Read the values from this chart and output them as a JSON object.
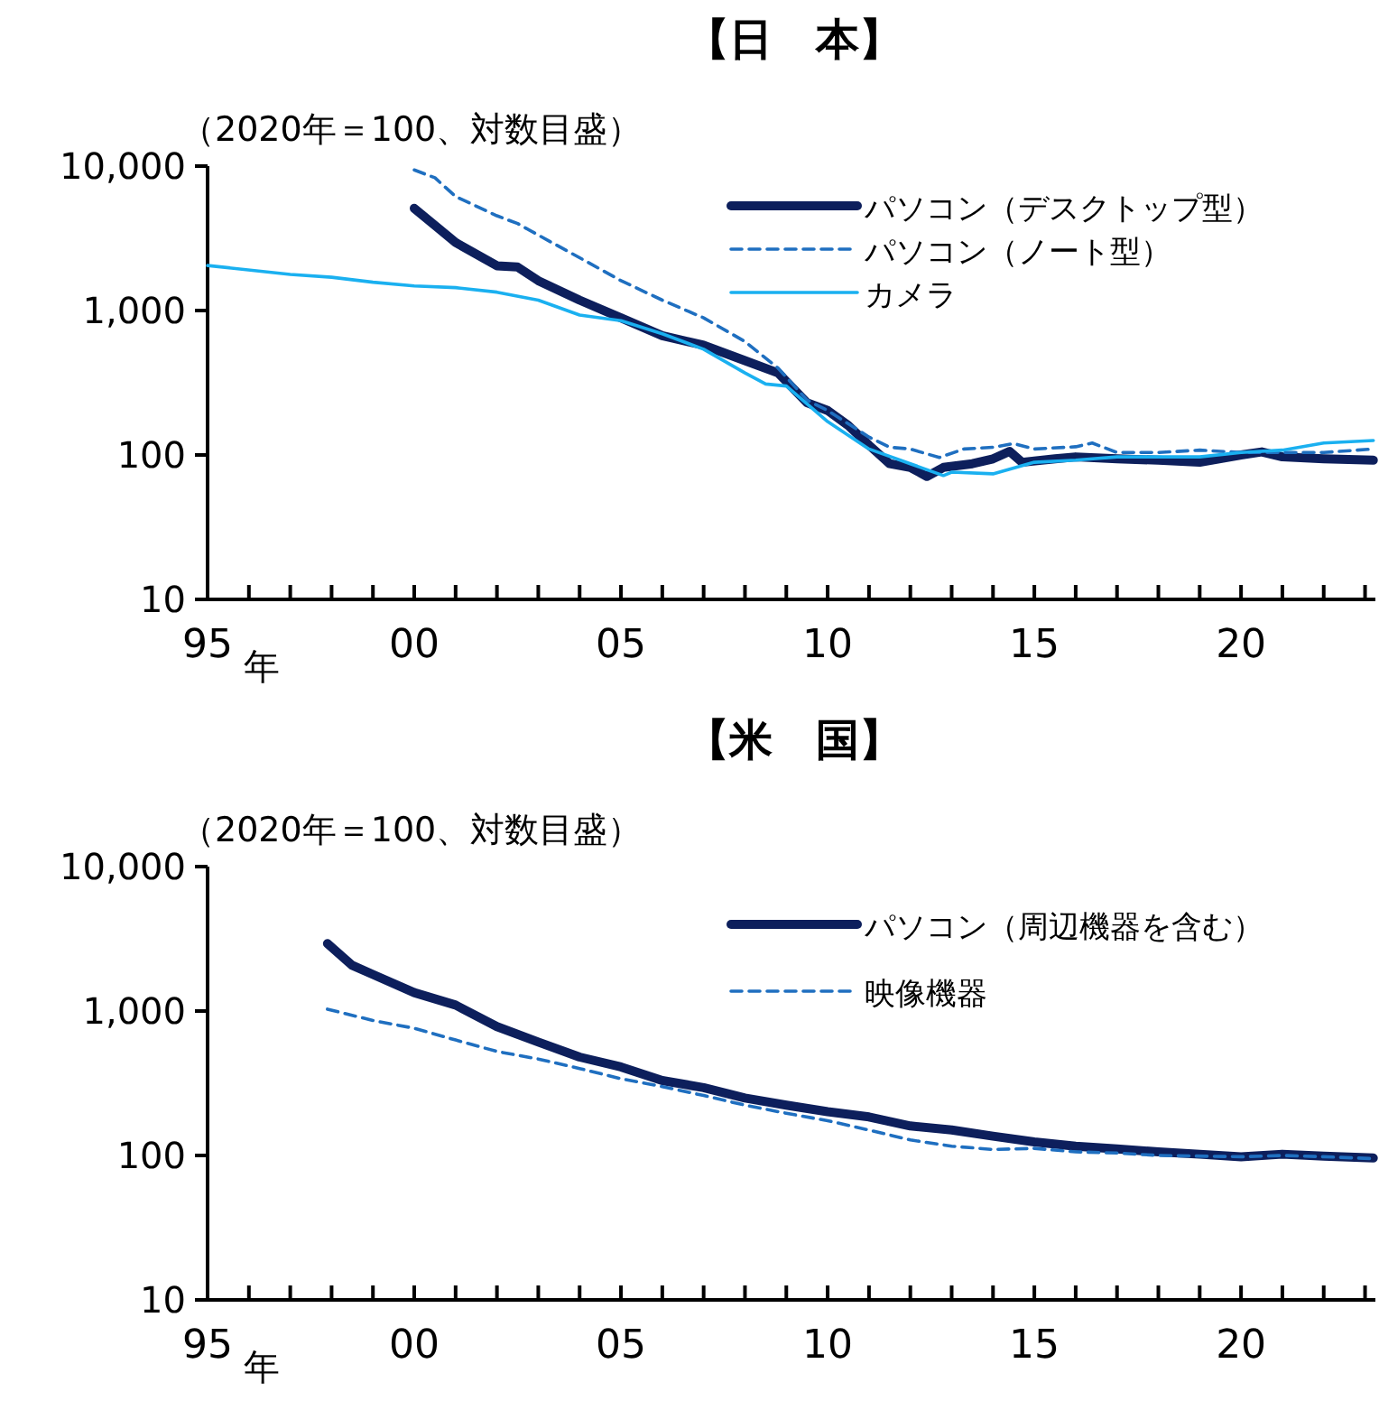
{
  "chart_data": [
    {
      "type": "line",
      "title": "【日　本】",
      "subtitle": "（2020年＝100、対数目盛）",
      "xlabel": "年",
      "log": true,
      "legend": "top right",
      "grid": false,
      "xlim": [
        1995,
        2023.25
      ],
      "ylim": [
        10,
        10000
      ],
      "yticks": [
        {
          "value": 10,
          "label": "10"
        },
        {
          "value": 100,
          "label": "100"
        },
        {
          "value": 1000,
          "label": "1,000"
        },
        {
          "value": 10000,
          "label": "10,000"
        }
      ],
      "xticks": [
        {
          "value": 1995,
          "label": "95"
        },
        {
          "value": 1996,
          "label": null
        },
        {
          "value": 1997,
          "label": null
        },
        {
          "value": 1998,
          "label": null
        },
        {
          "value": 1999,
          "label": null
        },
        {
          "value": 2000,
          "label": "00"
        },
        {
          "value": 2001,
          "label": null
        },
        {
          "value": 2002,
          "label": null
        },
        {
          "value": 2003,
          "label": null
        },
        {
          "value": 2004,
          "label": null
        },
        {
          "value": 2005,
          "label": "05"
        },
        {
          "value": 2006,
          "label": null
        },
        {
          "value": 2007,
          "label": null
        },
        {
          "value": 2008,
          "label": null
        },
        {
          "value": 2009,
          "label": null
        },
        {
          "value": 2010,
          "label": "10"
        },
        {
          "value": 2011,
          "label": null
        },
        {
          "value": 2012,
          "label": null
        },
        {
          "value": 2013,
          "label": null
        },
        {
          "value": 2014,
          "label": null
        },
        {
          "value": 2015,
          "label": "15"
        },
        {
          "value": 2016,
          "label": null
        },
        {
          "value": 2017,
          "label": null
        },
        {
          "value": 2018,
          "label": null
        },
        {
          "value": 2019,
          "label": null
        },
        {
          "value": 2020,
          "label": "20"
        },
        {
          "value": 2021,
          "label": null
        },
        {
          "value": 2022,
          "label": null
        },
        {
          "value": 2023,
          "label": null
        }
      ],
      "series": [
        {
          "name": "パソコン（デスクトップ型）",
          "color": "#0d1f5c",
          "line_style": "solid",
          "x": [
            2000,
            2001,
            2002,
            2002.5,
            2003,
            2004,
            2005,
            2006,
            2007,
            2008,
            2008.8,
            2009.5,
            2010,
            2010.5,
            2011,
            2011.5,
            2012,
            2012.4,
            2012.8,
            2013.5,
            2014,
            2014.4,
            2014.7,
            2015.5,
            2016,
            2017,
            2018,
            2019,
            2020,
            2020.5,
            2021,
            2022,
            2023.2
          ],
          "values": [
            5100,
            2960,
            2040,
            2000,
            1610,
            1180,
            890,
            670,
            575,
            450,
            370,
            230,
            203,
            160,
            117,
            87,
            82,
            71,
            82,
            87,
            94,
            106,
            89,
            94,
            97,
            94,
            92,
            89,
            100,
            105,
            97,
            94,
            92
          ]
        },
        {
          "name": "パソコン（ノート型）",
          "color": "#1f6fc0",
          "line_style": "dashed",
          "x": [
            2000,
            2000.5,
            2001,
            2002,
            2002.5,
            2003,
            2004,
            2005,
            2006,
            2007,
            2008,
            2008.8,
            2009.5,
            2010,
            2011,
            2011.5,
            2012,
            2012.7,
            2013.3,
            2014,
            2014.5,
            2015,
            2016,
            2016.4,
            2017,
            2018,
            2019,
            2020,
            2021,
            2022,
            2023.2
          ],
          "values": [
            9400,
            8300,
            6150,
            4530,
            4000,
            3330,
            2320,
            1610,
            1180,
            890,
            610,
            400,
            240,
            203,
            133,
            113,
            110,
            96,
            110,
            113,
            120,
            110,
            114,
            121,
            104,
            104,
            108,
            104,
            104,
            104,
            110
          ]
        },
        {
          "name": "カメラ",
          "color": "#1ab0f0",
          "line_style": "solid",
          "x": [
            1995,
            1997,
            1998,
            1999,
            2000,
            2001,
            2002,
            2003,
            2004,
            2005,
            2006,
            2007,
            2008,
            2008.5,
            2009,
            2010,
            2011,
            2012,
            2012.8,
            2013,
            2014,
            2015,
            2016,
            2017,
            2018,
            2019,
            2020,
            2021,
            2022,
            2023.2
          ],
          "values": [
            2050,
            1780,
            1700,
            1570,
            1480,
            1440,
            1340,
            1180,
            930,
            850,
            690,
            540,
            370,
            310,
            300,
            170,
            110,
            87,
            72,
            76,
            74,
            89,
            92,
            97,
            97,
            97,
            104,
            108,
            121,
            126
          ]
        }
      ]
    },
    {
      "type": "line",
      "title": "【米　国】",
      "subtitle": "（2020年＝100、対数目盛）",
      "xlabel": "年",
      "log": true,
      "legend": "top right",
      "grid": false,
      "xlim": [
        1995,
        2023.25
      ],
      "ylim": [
        10,
        10000
      ],
      "yticks": [
        {
          "value": 10,
          "label": "10"
        },
        {
          "value": 100,
          "label": "100"
        },
        {
          "value": 1000,
          "label": "1,000"
        },
        {
          "value": 10000,
          "label": "10,000"
        }
      ],
      "xticks": [
        {
          "value": 1995,
          "label": "95"
        },
        {
          "value": 1996,
          "label": null
        },
        {
          "value": 1997,
          "label": null
        },
        {
          "value": 1998,
          "label": null
        },
        {
          "value": 1999,
          "label": null
        },
        {
          "value": 2000,
          "label": "00"
        },
        {
          "value": 2001,
          "label": null
        },
        {
          "value": 2002,
          "label": null
        },
        {
          "value": 2003,
          "label": null
        },
        {
          "value": 2004,
          "label": null
        },
        {
          "value": 2005,
          "label": "05"
        },
        {
          "value": 2006,
          "label": null
        },
        {
          "value": 2007,
          "label": null
        },
        {
          "value": 2008,
          "label": null
        },
        {
          "value": 2009,
          "label": null
        },
        {
          "value": 2010,
          "label": "10"
        },
        {
          "value": 2011,
          "label": null
        },
        {
          "value": 2012,
          "label": null
        },
        {
          "value": 2013,
          "label": null
        },
        {
          "value": 2014,
          "label": null
        },
        {
          "value": 2015,
          "label": "15"
        },
        {
          "value": 2016,
          "label": null
        },
        {
          "value": 2017,
          "label": null
        },
        {
          "value": 2018,
          "label": null
        },
        {
          "value": 2019,
          "label": null
        },
        {
          "value": 2020,
          "label": "20"
        },
        {
          "value": 2021,
          "label": null
        },
        {
          "value": 2022,
          "label": null
        },
        {
          "value": 2023,
          "label": null
        }
      ],
      "series": [
        {
          "name": "パソコン（周辺機器を含む）",
          "color": "#0d1f5c",
          "line_style": "solid",
          "x": [
            1997.9,
            1998.5,
            1999,
            2000,
            2001,
            2002,
            2003,
            2004,
            2005,
            2006,
            2007,
            2008,
            2009,
            2010,
            2011,
            2012,
            2013,
            2014,
            2015,
            2016,
            2017,
            2018,
            2019,
            2020,
            2021,
            2022,
            2023.2
          ],
          "values": [
            2930,
            2070,
            1790,
            1340,
            1100,
            780,
            610,
            480,
            410,
            330,
            295,
            250,
            223,
            201,
            185,
            160,
            150,
            136,
            124,
            116,
            111,
            106,
            102,
            98,
            102,
            99,
            96
          ]
        },
        {
          "name": "映像機器",
          "color": "#1f6fc0",
          "line_style": "dashed",
          "x": [
            1997.9,
            1999,
            2000,
            2001,
            2002,
            2003,
            2004,
            2005,
            2006,
            2007,
            2008,
            2009,
            2010,
            2011,
            2012,
            2013,
            2014,
            2015,
            2016,
            2017,
            2018,
            2020,
            2021,
            2022,
            2023.2
          ],
          "values": [
            1030,
            860,
            760,
            630,
            525,
            465,
            400,
            340,
            300,
            260,
            223,
            196,
            174,
            150,
            128,
            116,
            110,
            112,
            106,
            104,
            100,
            98,
            100,
            98,
            95
          ]
        }
      ]
    }
  ]
}
